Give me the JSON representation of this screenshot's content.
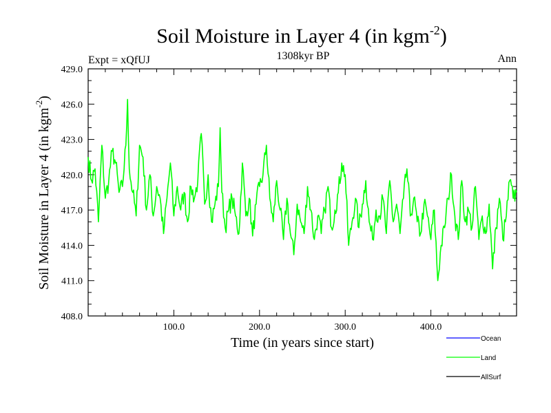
{
  "colors": {
    "ocean": "#0000ff",
    "land": "#00ff00",
    "allsurf": "#000000",
    "axis": "#000000",
    "background": "#ffffff"
  },
  "chart_data": {
    "type": "line",
    "title": {
      "main": "Soil Moisture in Layer 4 (in kgm",
      "sup": "-2",
      "close": ")"
    },
    "subtitle_left": "Expt = xQfUJ",
    "subtitle_center": "1308kyr BP",
    "subtitle_right": "Ann",
    "xlabel": "Time (in years since start)",
    "ylabel": {
      "main": "Soil Moisture in Layer 4 (in kgm",
      "sup": "-2",
      "close": ")"
    },
    "xlim": [
      0,
      500
    ],
    "ylim": [
      408,
      429
    ],
    "x_ticks": [
      {
        "value": 100,
        "label": "100.0"
      },
      {
        "value": 200,
        "label": "200.0"
      },
      {
        "value": 300,
        "label": "300.0"
      },
      {
        "value": 400,
        "label": "400.0"
      }
    ],
    "y_ticks": [
      {
        "value": 408,
        "label": "408.0"
      },
      {
        "value": 411,
        "label": "411.0"
      },
      {
        "value": 414,
        "label": "414.0"
      },
      {
        "value": 417,
        "label": "417.0"
      },
      {
        "value": 420,
        "label": "420.0"
      },
      {
        "value": 423,
        "label": "423.0"
      },
      {
        "value": 426,
        "label": "426.0"
      },
      {
        "value": 429,
        "label": "429.0"
      }
    ],
    "legend": {
      "placement": "bottom-right",
      "items": [
        {
          "name": "Ocean",
          "color": "#0000ff"
        },
        {
          "name": "Land",
          "color": "#00ff00"
        },
        {
          "name": "AllSurf",
          "color": "#000000"
        }
      ]
    },
    "series": [
      {
        "name": "Land",
        "color": "#00ff00",
        "x": [
          0,
          4,
          8,
          12,
          16,
          20,
          24,
          28,
          32,
          36,
          40,
          44,
          46,
          48,
          52,
          56,
          60,
          64,
          68,
          72,
          76,
          80,
          84,
          88,
          92,
          96,
          100,
          104,
          108,
          112,
          116,
          120,
          124,
          128,
          132,
          136,
          140,
          144,
          148,
          152,
          154,
          156,
          160,
          164,
          168,
          172,
          176,
          180,
          184,
          188,
          192,
          196,
          200,
          204,
          208,
          212,
          216,
          220,
          224,
          228,
          232,
          236,
          240,
          244,
          248,
          252,
          256,
          260,
          264,
          268,
          272,
          276,
          280,
          284,
          288,
          292,
          296,
          300,
          304,
          308,
          312,
          316,
          320,
          324,
          328,
          332,
          336,
          340,
          344,
          348,
          352,
          356,
          360,
          364,
          368,
          372,
          376,
          380,
          384,
          388,
          392,
          396,
          400,
          404,
          408,
          412,
          416,
          420,
          424,
          428,
          432,
          436,
          440,
          444,
          448,
          452,
          456,
          460,
          464,
          468,
          472,
          476,
          480,
          484,
          488,
          492,
          496,
          500
        ],
        "y": [
          421.5,
          419.5,
          420.5,
          416.0,
          422.5,
          418.0,
          419.5,
          422.0,
          421.0,
          418.5,
          419.0,
          422.5,
          426.4,
          420.5,
          418.5,
          416.5,
          422.5,
          421.5,
          417.0,
          420.0,
          416.5,
          419.0,
          418.0,
          415.0,
          418.0,
          421.0,
          416.5,
          419.0,
          417.0,
          418.5,
          416.0,
          419.0,
          418.0,
          419.5,
          423.5,
          417.5,
          420.0,
          416.0,
          417.5,
          419.0,
          424.0,
          418.5,
          415.5,
          417.0,
          418.0,
          416.5,
          415.0,
          421.0,
          416.5,
          418.0,
          414.8,
          417.5,
          419.0,
          420.0,
          422.5,
          418.0,
          416.0,
          419.5,
          417.0,
          414.5,
          418.0,
          415.0,
          413.2,
          417.5,
          416.0,
          415.0,
          419.0,
          417.0,
          414.5,
          416.5,
          415.0,
          417.0,
          419.0,
          415.5,
          417.0,
          418.5,
          421.0,
          420.0,
          414.0,
          416.0,
          418.0,
          415.5,
          417.5,
          419.5,
          416.0,
          414.5,
          417.0,
          416.5,
          418.0,
          415.0,
          419.5,
          416.0,
          417.5,
          415.0,
          418.0,
          420.5,
          416.5,
          418.0,
          416.0,
          415.0,
          417.5,
          416.5,
          414.5,
          417.0,
          411.0,
          414.0,
          415.5,
          418.0,
          420.0,
          416.5,
          414.5,
          419.5,
          416.0,
          417.0,
          415.5,
          419.0,
          414.5,
          416.5,
          415.0,
          417.5,
          412.0,
          415.5,
          418.0,
          414.5,
          416.5,
          419.5,
          418.0,
          418.5
        ]
      },
      {
        "name": "Ocean",
        "color": "#0000ff",
        "x": [],
        "y": []
      },
      {
        "name": "AllSurf",
        "color": "#000000",
        "x": [],
        "y": []
      }
    ]
  }
}
